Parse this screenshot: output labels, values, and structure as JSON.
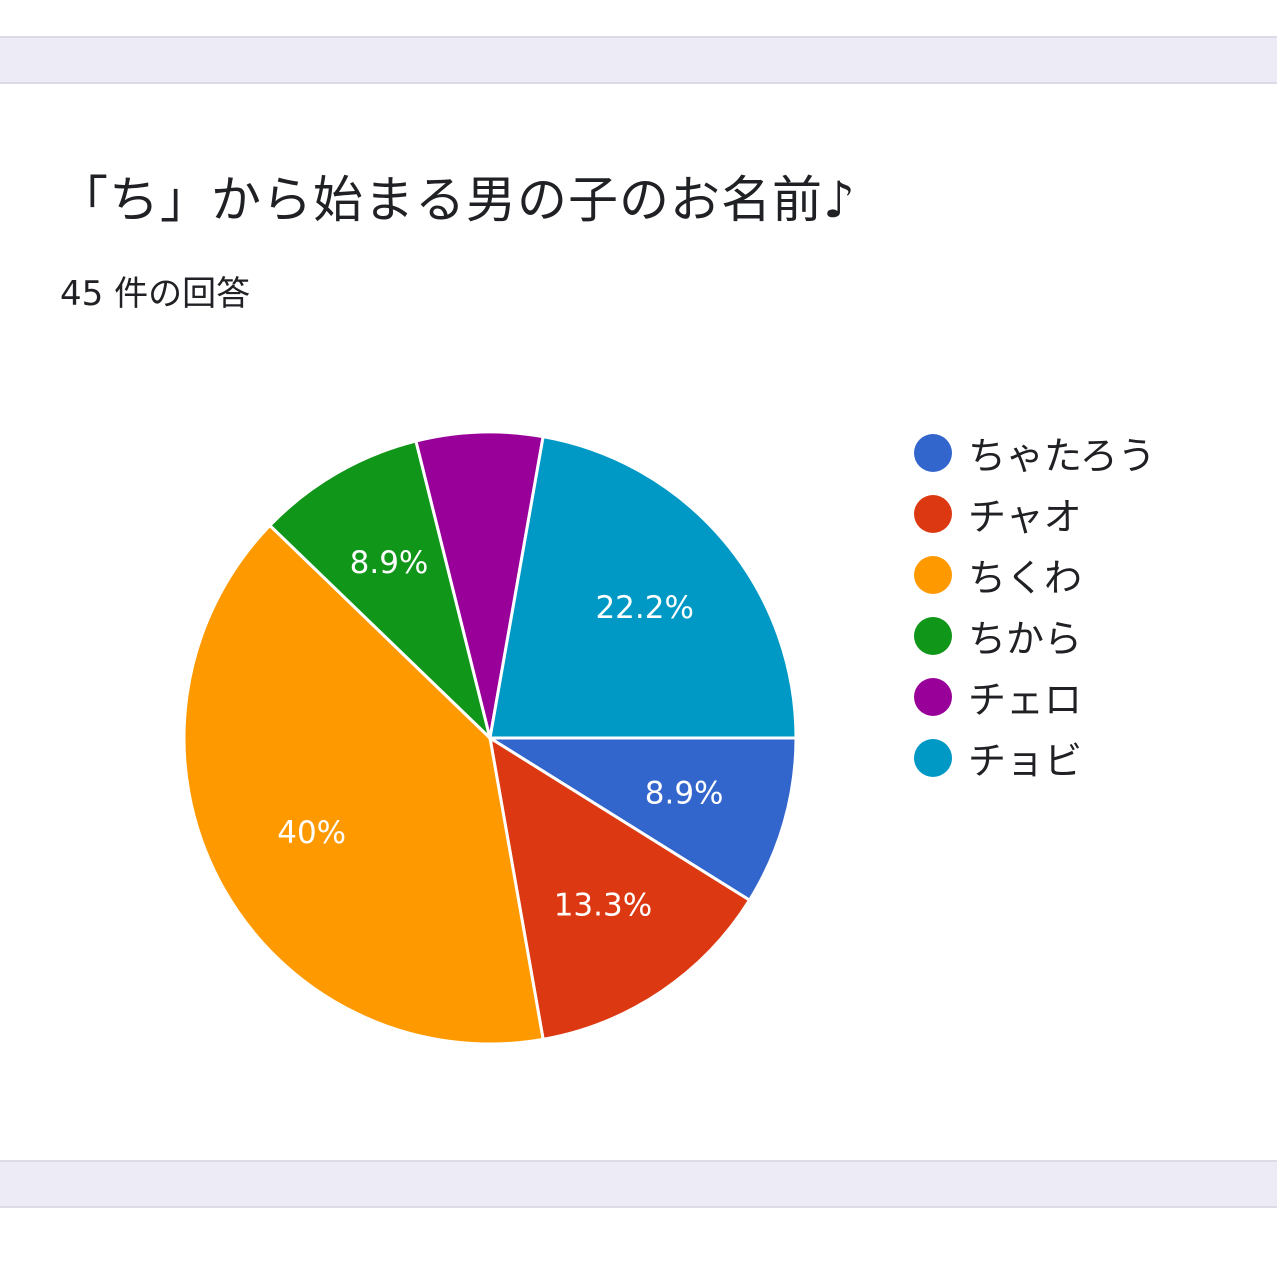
{
  "header": {
    "title": "「ち」から始まる男の子のお名前♪",
    "response_count": "45 件の回答"
  },
  "chart_data": {
    "type": "pie",
    "title": "「ち」から始まる男の子のお名前♪",
    "total_responses": 45,
    "legend_position": "right",
    "categories": [
      "ちゃたろう",
      "チャオ",
      "ちくわ",
      "ちから",
      "チェロ",
      "チョビ"
    ],
    "values": [
      4,
      6,
      18,
      4,
      3,
      10
    ],
    "percent_labels": [
      "8.9%",
      "13.3%",
      "40%",
      "8.9%",
      "",
      "22.2%"
    ],
    "colors": [
      "#3366cc",
      "#dc3912",
      "#ff9900",
      "#109618",
      "#990099",
      "#0099c6"
    ]
  }
}
